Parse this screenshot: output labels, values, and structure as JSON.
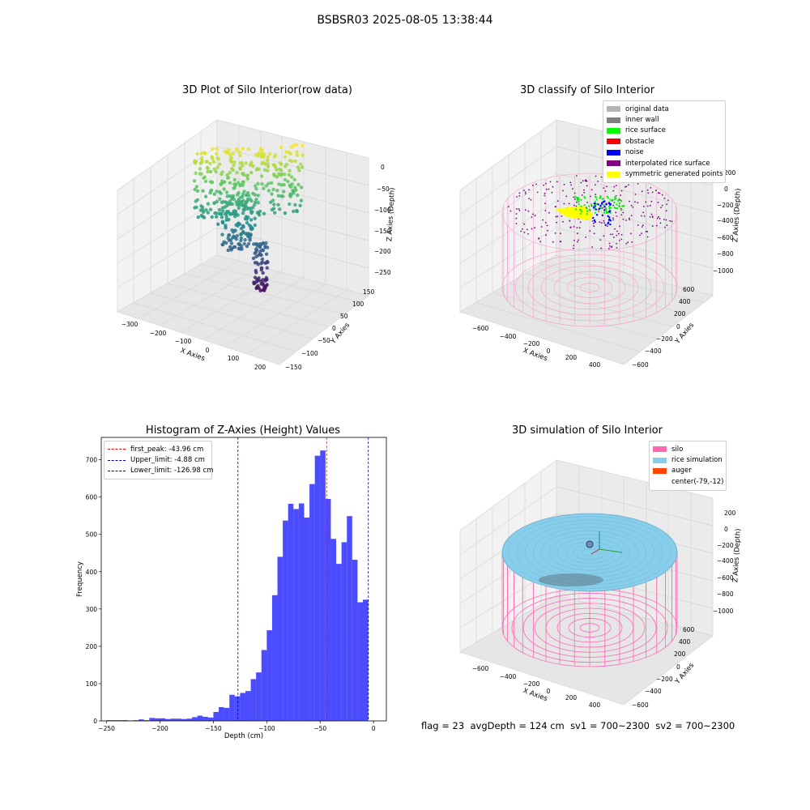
{
  "suptitle": "BSBSR03 2025-08-05 13:38:44",
  "panels": {
    "raw": {
      "title": "3D Plot of Silo Interior(row data)",
      "xlabel": "X Axies",
      "ylabel": "Y Axies",
      "zlabel": "Z Axies (Depth)",
      "xticks": [
        "−300",
        "−200",
        "−100",
        "0",
        "100",
        "200"
      ],
      "yticks": [
        "−150",
        "−100",
        "−50",
        "0",
        "50",
        "100",
        "150"
      ],
      "zticks": [
        "0",
        "−50",
        "−100",
        "−150",
        "−200",
        "−250"
      ],
      "colormap": "viridis"
    },
    "classify": {
      "title": "3D classify of Silo Interior",
      "xlabel": "X Axies",
      "ylabel": "Y Axies",
      "zlabel": "Z Axies (Depth)",
      "xticks": [
        "−600",
        "−400",
        "−200",
        "0",
        "200",
        "400"
      ],
      "yticks": [
        "−600",
        "−400",
        "−200",
        "0",
        "200",
        "400",
        "600"
      ],
      "zticks": [
        "200",
        "0",
        "−200",
        "−400",
        "−600",
        "−800",
        "−1000"
      ],
      "legend": [
        {
          "label": "original data",
          "color": "#b4b4b4"
        },
        {
          "label": "inner wall",
          "color": "#808080"
        },
        {
          "label": "rice surface",
          "color": "#00ff00"
        },
        {
          "label": "obstacle",
          "color": "#ff0000"
        },
        {
          "label": "noise",
          "color": "#0000ff"
        },
        {
          "label": "interpolated rice surface",
          "color": "#800080"
        },
        {
          "label": "symmetric generated points",
          "color": "#ffff00"
        }
      ]
    },
    "hist": {
      "title": "Histogram of Z-Axies (Height) Values",
      "legend": [
        {
          "label": "first_peak: -43.96 cm",
          "color": "#ff0000"
        },
        {
          "label": "Upper_limit: -4.88 cm",
          "color": "#0000aa"
        },
        {
          "label": "Lower_limit: -126.98 cm",
          "color": "#0000aa"
        }
      ]
    },
    "sim": {
      "title": "3D simulation of Silo Interior",
      "xlabel": "X Axies",
      "ylabel": "Y Axies",
      "zlabel": "Z Axies (Depth)",
      "xticks": [
        "−600",
        "−400",
        "−200",
        "0",
        "200",
        "400"
      ],
      "yticks": [
        "−600",
        "−400",
        "−200",
        "0",
        "200",
        "400",
        "600"
      ],
      "zticks": [
        "200",
        "0",
        "−200",
        "−400",
        "−600",
        "−800",
        "−1000"
      ],
      "legend": [
        {
          "label": "silo",
          "color": "#ff69b4"
        },
        {
          "label": "rice simulation",
          "color": "#87ceeb"
        },
        {
          "label": "auger",
          "color": "#ff4500"
        },
        {
          "label": "center(-79,-12)",
          "color": "none"
        }
      ]
    }
  },
  "stats": {
    "flag": "flag = 23",
    "avg_depth": "avgDepth = 124 cm",
    "sv1": "sv1 = 700~2300",
    "sv2": "sv2 = 700~2300"
  },
  "chart_data": {
    "type": "bar",
    "title": "Histogram of Z-Axies (Height) Values",
    "xlabel": "Depth (cm)",
    "ylabel": "Frequency",
    "xlim": [
      -255,
      12
    ],
    "ylim": [
      0,
      760
    ],
    "xticks": [
      -250,
      -200,
      -150,
      -100,
      -50,
      0
    ],
    "yticks": [
      0,
      100,
      200,
      300,
      400,
      500,
      600,
      700
    ],
    "bar_color": "#0000ff",
    "bin_width": 5,
    "bins": [
      [
        -245,
        2
      ],
      [
        -240,
        2
      ],
      [
        -235,
        2
      ],
      [
        -230,
        2
      ],
      [
        -225,
        1
      ],
      [
        -220,
        2
      ],
      [
        -215,
        4
      ],
      [
        -210,
        2
      ],
      [
        -205,
        8
      ],
      [
        -200,
        7
      ],
      [
        -195,
        7
      ],
      [
        -190,
        5
      ],
      [
        -185,
        6
      ],
      [
        -180,
        6
      ],
      [
        -175,
        5
      ],
      [
        -170,
        6
      ],
      [
        -165,
        10
      ],
      [
        -160,
        14
      ],
      [
        -155,
        11
      ],
      [
        -150,
        9
      ],
      [
        -145,
        24
      ],
      [
        -140,
        37
      ],
      [
        -135,
        35
      ],
      [
        -130,
        70
      ],
      [
        -125,
        66
      ],
      [
        -120,
        75
      ],
      [
        -115,
        80
      ],
      [
        -110,
        112
      ],
      [
        -105,
        130
      ],
      [
        -100,
        190
      ],
      [
        -95,
        243
      ],
      [
        -90,
        337
      ],
      [
        -85,
        440
      ],
      [
        -80,
        537
      ],
      [
        -75,
        582
      ],
      [
        -70,
        568
      ],
      [
        -65,
        583
      ],
      [
        -60,
        545
      ],
      [
        -55,
        635
      ],
      [
        -50,
        711
      ],
      [
        -45,
        725
      ],
      [
        -40,
        595
      ],
      [
        -35,
        488
      ],
      [
        -30,
        421
      ],
      [
        -25,
        479
      ],
      [
        -20,
        549
      ],
      [
        -15,
        432
      ],
      [
        -10,
        318
      ],
      [
        -5,
        325
      ]
    ],
    "lines": [
      {
        "name": "first_peak",
        "x": -43.96,
        "color": "#ff0000"
      },
      {
        "name": "Upper_limit",
        "x": -4.88,
        "color": "#0000aa"
      },
      {
        "name": "Lower_limit",
        "x": -126.98,
        "color": "#0000aa"
      }
    ]
  }
}
